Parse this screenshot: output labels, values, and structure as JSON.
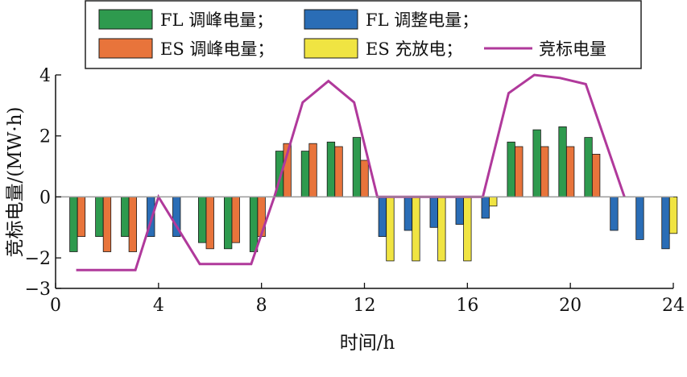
{
  "chart_data": {
    "type": "bar",
    "xlabel": "时间/h",
    "ylabel": "竞标电量/(MW·h)",
    "xlim": [
      0,
      24
    ],
    "ylim": [
      -3,
      4
    ],
    "xticks": [
      0,
      4,
      8,
      12,
      16,
      20,
      24
    ],
    "yticks": [
      -3,
      -2,
      0,
      2,
      4
    ],
    "ytick_labels": [
      "−3",
      "−2",
      "0",
      "2",
      "4"
    ],
    "grid": false,
    "legend_position": "top",
    "hours": [
      1,
      2,
      3,
      4,
      5,
      6,
      7,
      8,
      9,
      10,
      11,
      12,
      13,
      14,
      15,
      16,
      17,
      18,
      19,
      20,
      21,
      22,
      23,
      24
    ],
    "series": [
      {
        "name": "FL 调峰电量；",
        "kind": "bar",
        "color": "#2e9a4e",
        "offset": -0.3,
        "values": [
          -1.8,
          -1.3,
          -1.3,
          0,
          0,
          -1.5,
          -1.7,
          -1.8,
          1.5,
          1.5,
          1.8,
          1.95,
          0,
          0,
          0,
          0,
          0,
          1.8,
          2.2,
          2.3,
          1.95,
          0,
          0,
          0
        ]
      },
      {
        "name": "ES 调峰电量；",
        "kind": "bar",
        "color": "#e8743b",
        "offset": 0.0,
        "values": [
          -1.3,
          -1.8,
          -1.8,
          0,
          0,
          -1.7,
          -1.5,
          -1.3,
          1.75,
          1.75,
          1.65,
          1.2,
          0,
          0,
          0,
          0,
          0,
          1.65,
          1.65,
          1.65,
          1.4,
          0,
          0,
          0
        ]
      },
      {
        "name": "FL 调整电量；",
        "kind": "bar",
        "color": "#2a6db6",
        "offset": -0.3,
        "values": [
          0,
          0,
          0,
          -1.3,
          -1.3,
          0,
          0,
          0,
          0,
          0,
          0,
          0,
          -1.3,
          -1.1,
          -1.0,
          -0.9,
          -0.7,
          0,
          0,
          0,
          0,
          -1.1,
          -1.4,
          -1.7
        ]
      },
      {
        "name": "ES 充放电；",
        "kind": "bar",
        "color": "#f0e442",
        "offset": 0.0,
        "values": [
          0,
          0,
          0,
          0,
          0,
          0,
          0,
          0,
          0,
          0,
          0,
          0,
          -2.1,
          -2.1,
          -2.1,
          -2.1,
          -0.3,
          0,
          0,
          0,
          0,
          0,
          0,
          -1.2
        ]
      },
      {
        "name": "竞标电量",
        "kind": "line",
        "color": "#b0399b",
        "x": [
          0.8,
          3.1,
          4.0,
          5.6,
          7.6,
          8.5,
          9.6,
          10.6,
          11.6,
          12.5,
          16.6,
          17.6,
          18.6,
          19.6,
          20.6,
          22.1
        ],
        "values": [
          -2.4,
          -2.4,
          0,
          -2.2,
          -2.2,
          0,
          3.1,
          3.8,
          3.1,
          0,
          0,
          3.4,
          4.0,
          3.9,
          3.7,
          0
        ]
      }
    ]
  }
}
